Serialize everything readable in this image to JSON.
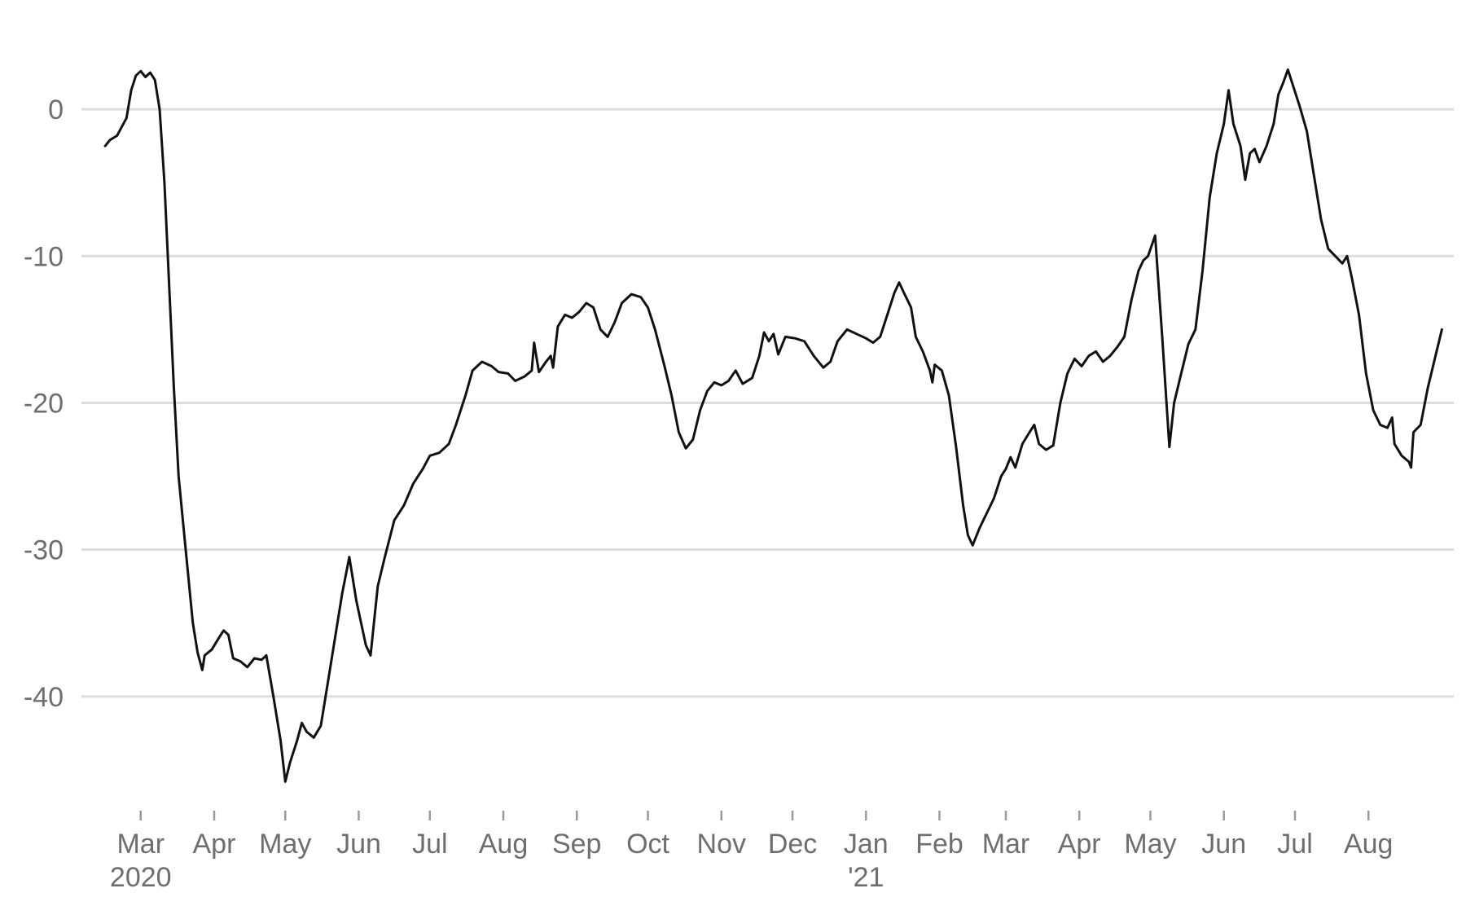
{
  "chart_data": {
    "type": "line",
    "title": "",
    "xlabel": "",
    "ylabel": "",
    "grid": true,
    "legend": "none",
    "line_color": "#111111",
    "grid_color": "#dcdcdc",
    "text_color": "#6e6e6e",
    "xlim": [
      "2020-02-05",
      "2021-09-06"
    ],
    "ylim": [
      -47.5,
      5.5
    ],
    "y_ticks": [
      0,
      -10,
      -20,
      -30,
      -40
    ],
    "y_tick_labels": [
      "0",
      "-10",
      "-20",
      "-30",
      "-40"
    ],
    "x_ticks": [
      {
        "date": "2020-03-01",
        "label": "Mar",
        "sublabel": "2020"
      },
      {
        "date": "2020-04-01",
        "label": "Apr",
        "sublabel": ""
      },
      {
        "date": "2020-05-01",
        "label": "May",
        "sublabel": ""
      },
      {
        "date": "2020-06-01",
        "label": "Jun",
        "sublabel": ""
      },
      {
        "date": "2020-07-01",
        "label": "Jul",
        "sublabel": ""
      },
      {
        "date": "2020-08-01",
        "label": "Aug",
        "sublabel": ""
      },
      {
        "date": "2020-09-01",
        "label": "Sep",
        "sublabel": ""
      },
      {
        "date": "2020-10-01",
        "label": "Oct",
        "sublabel": ""
      },
      {
        "date": "2020-11-01",
        "label": "Nov",
        "sublabel": ""
      },
      {
        "date": "2020-12-01",
        "label": "Dec",
        "sublabel": ""
      },
      {
        "date": "2021-01-01",
        "label": "Jan",
        "sublabel": "'21"
      },
      {
        "date": "2021-02-01",
        "label": "Feb",
        "sublabel": ""
      },
      {
        "date": "2021-03-01",
        "label": "Mar",
        "sublabel": ""
      },
      {
        "date": "2021-04-01",
        "label": "Apr",
        "sublabel": ""
      },
      {
        "date": "2021-05-01",
        "label": "May",
        "sublabel": ""
      },
      {
        "date": "2021-06-01",
        "label": "Jun",
        "sublabel": ""
      },
      {
        "date": "2021-07-01",
        "label": "Jul",
        "sublabel": ""
      },
      {
        "date": "2021-08-01",
        "label": "Aug",
        "sublabel": ""
      }
    ],
    "series": [
      {
        "name": "",
        "points": [
          [
            "2020-02-15",
            -2.5
          ],
          [
            "2020-02-17",
            -2.1
          ],
          [
            "2020-02-20",
            -1.8
          ],
          [
            "2020-02-22",
            -1.2
          ],
          [
            "2020-02-24",
            -0.6
          ],
          [
            "2020-02-26",
            1.3
          ],
          [
            "2020-02-28",
            2.3
          ],
          [
            "2020-03-01",
            2.6
          ],
          [
            "2020-03-03",
            2.2
          ],
          [
            "2020-03-05",
            2.5
          ],
          [
            "2020-03-07",
            2.0
          ],
          [
            "2020-03-09",
            0.0
          ],
          [
            "2020-03-11",
            -5.0
          ],
          [
            "2020-03-13",
            -12.0
          ],
          [
            "2020-03-15",
            -19.0
          ],
          [
            "2020-03-17",
            -25.0
          ],
          [
            "2020-03-20",
            -30.0
          ],
          [
            "2020-03-23",
            -35.0
          ],
          [
            "2020-03-25",
            -37.0
          ],
          [
            "2020-03-27",
            -38.2
          ],
          [
            "2020-03-28",
            -37.2
          ],
          [
            "2020-03-31",
            -36.8
          ],
          [
            "2020-04-03",
            -36.0
          ],
          [
            "2020-04-05",
            -35.5
          ],
          [
            "2020-04-07",
            -35.8
          ],
          [
            "2020-04-09",
            -37.4
          ],
          [
            "2020-04-12",
            -37.6
          ],
          [
            "2020-04-15",
            -38.0
          ],
          [
            "2020-04-18",
            -37.4
          ],
          [
            "2020-04-21",
            -37.5
          ],
          [
            "2020-04-23",
            -37.2
          ],
          [
            "2020-04-26",
            -40.0
          ],
          [
            "2020-04-29",
            -43.0
          ],
          [
            "2020-05-01",
            -45.8
          ],
          [
            "2020-05-03",
            -44.5
          ],
          [
            "2020-05-06",
            -43.0
          ],
          [
            "2020-05-08",
            -41.8
          ],
          [
            "2020-05-10",
            -42.4
          ],
          [
            "2020-05-13",
            -42.8
          ],
          [
            "2020-05-16",
            -42.0
          ],
          [
            "2020-05-19",
            -39.0
          ],
          [
            "2020-05-22",
            -36.0
          ],
          [
            "2020-05-25",
            -33.0
          ],
          [
            "2020-05-28",
            -30.5
          ],
          [
            "2020-05-31",
            -33.5
          ],
          [
            "2020-06-04",
            -36.5
          ],
          [
            "2020-06-06",
            -37.2
          ],
          [
            "2020-06-09",
            -32.5
          ],
          [
            "2020-06-12",
            -30.5
          ],
          [
            "2020-06-16",
            -28.0
          ],
          [
            "2020-06-20",
            -27.0
          ],
          [
            "2020-06-24",
            -25.5
          ],
          [
            "2020-06-28",
            -24.5
          ],
          [
            "2020-07-01",
            -23.6
          ],
          [
            "2020-07-05",
            -23.4
          ],
          [
            "2020-07-09",
            -22.8
          ],
          [
            "2020-07-12",
            -21.5
          ],
          [
            "2020-07-16",
            -19.5
          ],
          [
            "2020-07-19",
            -17.8
          ],
          [
            "2020-07-23",
            -17.2
          ],
          [
            "2020-07-27",
            -17.5
          ],
          [
            "2020-07-30",
            -17.9
          ],
          [
            "2020-08-03",
            -18.0
          ],
          [
            "2020-08-06",
            -18.5
          ],
          [
            "2020-08-10",
            -18.2
          ],
          [
            "2020-08-13",
            -17.8
          ],
          [
            "2020-08-14",
            -15.9
          ],
          [
            "2020-08-16",
            -17.9
          ],
          [
            "2020-08-19",
            -17.2
          ],
          [
            "2020-08-21",
            -16.8
          ],
          [
            "2020-08-22",
            -17.6
          ],
          [
            "2020-08-24",
            -14.8
          ],
          [
            "2020-08-27",
            -14.0
          ],
          [
            "2020-08-30",
            -14.2
          ],
          [
            "2020-09-02",
            -13.8
          ],
          [
            "2020-09-05",
            -13.2
          ],
          [
            "2020-09-08",
            -13.5
          ],
          [
            "2020-09-11",
            -15.0
          ],
          [
            "2020-09-14",
            -15.5
          ],
          [
            "2020-09-17",
            -14.5
          ],
          [
            "2020-09-20",
            -13.2
          ],
          [
            "2020-09-24",
            -12.6
          ],
          [
            "2020-09-28",
            -12.8
          ],
          [
            "2020-10-01",
            -13.5
          ],
          [
            "2020-10-04",
            -15.0
          ],
          [
            "2020-10-08",
            -17.5
          ],
          [
            "2020-10-11",
            -19.5
          ],
          [
            "2020-10-14",
            -22.0
          ],
          [
            "2020-10-17",
            -23.1
          ],
          [
            "2020-10-20",
            -22.5
          ],
          [
            "2020-10-23",
            -20.5
          ],
          [
            "2020-10-26",
            -19.2
          ],
          [
            "2020-10-29",
            -18.6
          ],
          [
            "2020-11-01",
            -18.8
          ],
          [
            "2020-11-04",
            -18.5
          ],
          [
            "2020-11-07",
            -17.8
          ],
          [
            "2020-11-10",
            -18.7
          ],
          [
            "2020-11-14",
            -18.3
          ],
          [
            "2020-11-17",
            -16.8
          ],
          [
            "2020-11-19",
            -15.2
          ],
          [
            "2020-11-21",
            -15.8
          ],
          [
            "2020-11-23",
            -15.3
          ],
          [
            "2020-11-25",
            -16.7
          ],
          [
            "2020-11-28",
            -15.5
          ],
          [
            "2020-12-02",
            -15.6
          ],
          [
            "2020-12-06",
            -15.8
          ],
          [
            "2020-12-10",
            -16.8
          ],
          [
            "2020-12-14",
            -17.6
          ],
          [
            "2020-12-17",
            -17.2
          ],
          [
            "2020-12-20",
            -15.8
          ],
          [
            "2020-12-24",
            -15.0
          ],
          [
            "2020-12-28",
            -15.3
          ],
          [
            "2021-01-01",
            -15.6
          ],
          [
            "2021-01-04",
            -15.9
          ],
          [
            "2021-01-07",
            -15.5
          ],
          [
            "2021-01-10",
            -14.0
          ],
          [
            "2021-01-13",
            -12.5
          ],
          [
            "2021-01-15",
            -11.8
          ],
          [
            "2021-01-17",
            -12.5
          ],
          [
            "2021-01-20",
            -13.5
          ],
          [
            "2021-01-22",
            -15.5
          ],
          [
            "2021-01-25",
            -16.5
          ],
          [
            "2021-01-28",
            -17.8
          ],
          [
            "2021-01-29",
            -18.6
          ],
          [
            "2021-01-30",
            -17.4
          ],
          [
            "2021-02-02",
            -17.8
          ],
          [
            "2021-02-05",
            -19.5
          ],
          [
            "2021-02-08",
            -23.0
          ],
          [
            "2021-02-11",
            -27.0
          ],
          [
            "2021-02-13",
            -29.0
          ],
          [
            "2021-02-15",
            -29.7
          ],
          [
            "2021-02-18",
            -28.5
          ],
          [
            "2021-02-21",
            -27.5
          ],
          [
            "2021-02-24",
            -26.5
          ],
          [
            "2021-02-27",
            -25.0
          ],
          [
            "2021-03-01",
            -24.5
          ],
          [
            "2021-03-03",
            -23.7
          ],
          [
            "2021-03-05",
            -24.4
          ],
          [
            "2021-03-08",
            -22.8
          ],
          [
            "2021-03-11",
            -22.0
          ],
          [
            "2021-03-13",
            -21.5
          ],
          [
            "2021-03-15",
            -22.8
          ],
          [
            "2021-03-18",
            -23.2
          ],
          [
            "2021-03-21",
            -22.9
          ],
          [
            "2021-03-24",
            -20.0
          ],
          [
            "2021-03-27",
            -18.0
          ],
          [
            "2021-03-30",
            -17.0
          ],
          [
            "2021-04-02",
            -17.5
          ],
          [
            "2021-04-05",
            -16.8
          ],
          [
            "2021-04-08",
            -16.5
          ],
          [
            "2021-04-11",
            -17.2
          ],
          [
            "2021-04-14",
            -16.8
          ],
          [
            "2021-04-17",
            -16.2
          ],
          [
            "2021-04-20",
            -15.5
          ],
          [
            "2021-04-23",
            -13.0
          ],
          [
            "2021-04-26",
            -11.0
          ],
          [
            "2021-04-28",
            -10.3
          ],
          [
            "2021-04-30",
            -10.0
          ],
          [
            "2021-05-03",
            -8.6
          ],
          [
            "2021-05-06",
            -15.5
          ],
          [
            "2021-05-09",
            -23.0
          ],
          [
            "2021-05-11",
            -20.0
          ],
          [
            "2021-05-14",
            -18.0
          ],
          [
            "2021-05-17",
            -16.0
          ],
          [
            "2021-05-20",
            -15.0
          ],
          [
            "2021-05-23",
            -11.0
          ],
          [
            "2021-05-26",
            -6.0
          ],
          [
            "2021-05-29",
            -3.0
          ],
          [
            "2021-06-01",
            -1.0
          ],
          [
            "2021-06-03",
            1.3
          ],
          [
            "2021-06-05",
            -1.0
          ],
          [
            "2021-06-08",
            -2.5
          ],
          [
            "2021-06-10",
            -4.8
          ],
          [
            "2021-06-12",
            -3.0
          ],
          [
            "2021-06-14",
            -2.7
          ],
          [
            "2021-06-16",
            -3.6
          ],
          [
            "2021-06-19",
            -2.5
          ],
          [
            "2021-06-22",
            -1.0
          ],
          [
            "2021-06-24",
            1.0
          ],
          [
            "2021-06-26",
            1.8
          ],
          [
            "2021-06-28",
            2.7
          ],
          [
            "2021-06-30",
            1.7
          ],
          [
            "2021-07-03",
            0.2
          ],
          [
            "2021-07-06",
            -1.5
          ],
          [
            "2021-07-09",
            -4.5
          ],
          [
            "2021-07-12",
            -7.5
          ],
          [
            "2021-07-15",
            -9.5
          ],
          [
            "2021-07-18",
            -10.0
          ],
          [
            "2021-07-21",
            -10.5
          ],
          [
            "2021-07-23",
            -10.0
          ],
          [
            "2021-07-25",
            -11.5
          ],
          [
            "2021-07-28",
            -14.0
          ],
          [
            "2021-07-31",
            -18.0
          ],
          [
            "2021-08-03",
            -20.5
          ],
          [
            "2021-08-06",
            -21.5
          ],
          [
            "2021-08-09",
            -21.7
          ],
          [
            "2021-08-11",
            -21.0
          ],
          [
            "2021-08-12",
            -22.8
          ],
          [
            "2021-08-15",
            -23.6
          ],
          [
            "2021-08-18",
            -24.0
          ],
          [
            "2021-08-19",
            -24.4
          ],
          [
            "2021-08-20",
            -22.0
          ],
          [
            "2021-08-23",
            -21.5
          ],
          [
            "2021-08-26",
            -19.0
          ],
          [
            "2021-08-29",
            -17.0
          ],
          [
            "2021-09-01",
            -15.0
          ]
        ]
      }
    ]
  }
}
